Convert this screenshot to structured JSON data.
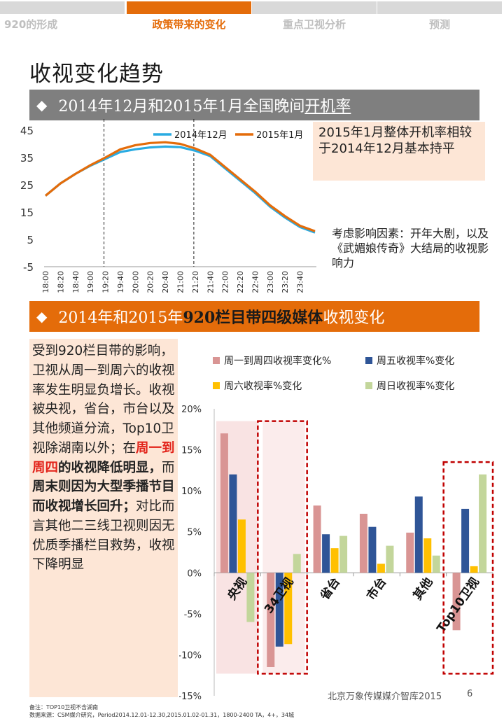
{
  "tabs": [
    {
      "label": "920的形成",
      "active": false
    },
    {
      "label": "政策带来的变化",
      "active": true
    },
    {
      "label": "重点卫视分析",
      "active": false
    },
    {
      "label": "预测",
      "active": false
    }
  ],
  "page_title": "收视变化趋势",
  "section1": {
    "diamond": "◆",
    "title_before": "2014年12月和2015年1月全国晚间",
    "title_underlined": "开机率",
    "box_text": "2015年1月整体开机率相较于2014年12月基本持平",
    "side_text": "考虑影响因素：开年大剧，以及《武媚娘传奇》大结局的收视影响力"
  },
  "section2": {
    "diamond": "◆",
    "title_p1": "2014年和2015年",
    "title_bold": "920栏目带四级媒体",
    "title_p2": "收视变化",
    "note_p1": "受到920栏目带的影响，卫视从周一到周六的收视率发生明显负增长。收视被央视，省台，市台以及其他频道分流，Top10卫视除湖南以外；在",
    "note_red": "周一到周四",
    "note_bold1": "的收视降低明显，",
    "note_p2": "而",
    "note_bold2": "周末则因为大型季播节目而收视增长回升；",
    "note_p3": "对比而言其他二三线卫视则因无优质季播栏目救势，收视下降明显"
  },
  "footer": {
    "brand": "北京万象传媒媒介智库2015",
    "page": "6",
    "note1": "备注：TOP10卫视不含湖南",
    "note2": "数据来源：CSM媒介研究，Period2014.12.01-12.30,2015.01.02-01.31，1800-2400   TA，4+，34城"
  },
  "colors": {
    "accent": "#e46c0a",
    "gray": "#7f7f7f",
    "line_dec": "#29abe2",
    "line_jan": "#e46c0a",
    "bar1": "#d99594",
    "bar2": "#2f5597",
    "bar3": "#ffc000",
    "bar4": "#c3d69b",
    "dashed_box": "#c00000"
  },
  "chart_data": [
    {
      "type": "line",
      "title": "",
      "xlabel": "",
      "ylabel": "",
      "ylim": [
        -5,
        45
      ],
      "yticks": [
        45,
        35,
        25,
        15,
        5,
        -5
      ],
      "x": [
        "18:00",
        "18:20",
        "18:40",
        "19:00",
        "19:20",
        "19:40",
        "20:00",
        "20:20",
        "20:40",
        "21:00",
        "21:20",
        "21:40",
        "22:00",
        "22:20",
        "22:40",
        "23:00",
        "23:20",
        "23:40",
        "24:00"
      ],
      "xtick_labels": [
        "18:00",
        "18:20",
        "18:40",
        "19:00",
        "19:20",
        "19:40",
        "20:00",
        "20:20",
        "20:40",
        "21:00",
        "21:20",
        "21:40",
        "22:00",
        "22:20",
        "22:40",
        "23:00",
        "23:20",
        "23:40"
      ],
      "series": [
        {
          "name": "2014年12月",
          "values": [
            21,
            25.5,
            29,
            32,
            34.5,
            37,
            38,
            38.7,
            39,
            38.8,
            37.5,
            35.5,
            31,
            26.5,
            22,
            17,
            13,
            9.5,
            7.5
          ]
        },
        {
          "name": "2015年1月",
          "values": [
            21,
            25.5,
            29,
            32.2,
            35,
            38,
            39.5,
            40.3,
            40.6,
            40,
            38.3,
            36,
            31.5,
            27,
            22.5,
            17.5,
            13.5,
            10,
            8
          ]
        }
      ],
      "legend": "top-center"
    },
    {
      "type": "bar",
      "title": "",
      "xlabel": "",
      "ylabel": "",
      "ylim": [
        -15,
        20
      ],
      "yticks": [
        "20%",
        "15%",
        "10%",
        "5%",
        "0%",
        "-5%",
        "-10%",
        "-15%"
      ],
      "categories": [
        "央视",
        "34卫视",
        "省台",
        "市台",
        "其他",
        "Top10卫视"
      ],
      "series": [
        {
          "name": "周一到周四收视率变化%",
          "values": [
            17,
            -11.5,
            8.2,
            7.2,
            4.9,
            -7
          ]
        },
        {
          "name": "周五收视率%变化",
          "values": [
            12,
            -9,
            4.7,
            5.6,
            9.3,
            7.8
          ]
        },
        {
          "name": "周六收视率%变化",
          "values": [
            6.5,
            -8.7,
            3,
            1.1,
            4.2,
            0.8
          ]
        },
        {
          "name": "周日收视率%变化",
          "values": [
            -6,
            2.3,
            4.5,
            3.3,
            2.1,
            12
          ]
        }
      ],
      "legend": "top"
    }
  ]
}
